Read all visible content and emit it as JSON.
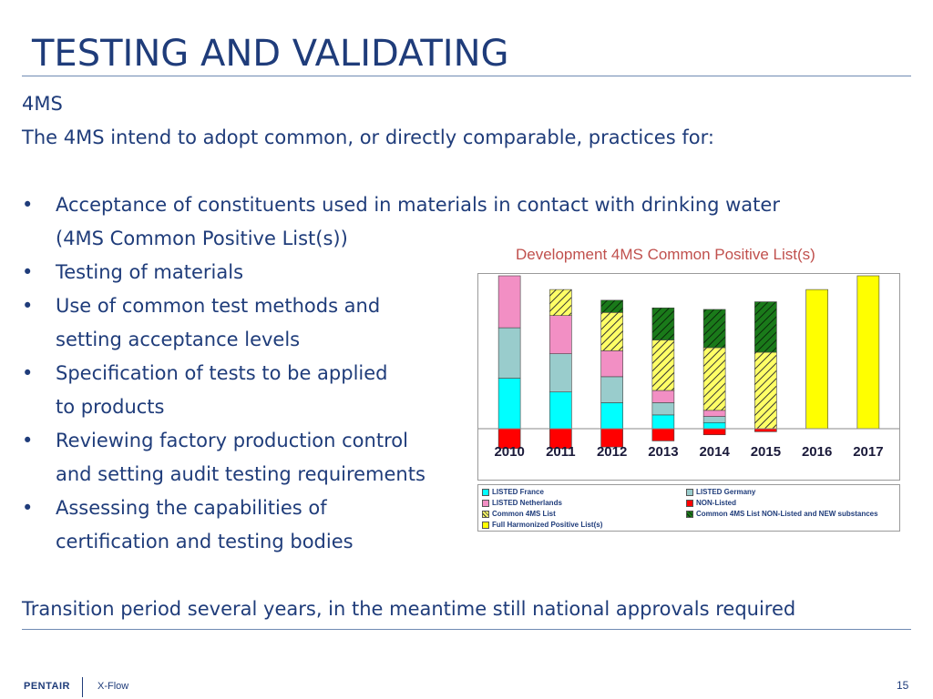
{
  "slide": {
    "title": "TESTING AND VALIDATING",
    "subtitle": "4MS",
    "intro": "The 4MS intend to adopt common, or directly comparable, practices for:",
    "bullet_marker": "•",
    "bullets": [
      {
        "line1": "Acceptance of constituents used in materials in contact with drinking water",
        "line2": "(4MS Common Positive List(s))"
      },
      {
        "line1": "Testing of materials",
        "line2": ""
      },
      {
        "line1": "Use of common test methods and",
        "line2": "setting acceptance levels"
      },
      {
        "line1": "Specification of tests to be applied",
        "line2": "to products"
      },
      {
        "line1": "Reviewing factory production control",
        "line2": "and setting audit testing requirements"
      },
      {
        "line1": "Assessing the capabilities of",
        "line2": "certification and testing bodies"
      }
    ],
    "conclusion": "Transition period several years, in the meantime still national approvals required"
  },
  "footer": {
    "logo": "PENTAIR",
    "brand": "X-Flow",
    "page_number": "15"
  },
  "chart_data": {
    "type": "bar",
    "stacked": true,
    "title": "Development 4MS Common Positive List(s)",
    "categories": [
      "2010",
      "2011",
      "2012",
      "2013",
      "2014",
      "2015",
      "2016",
      "2017"
    ],
    "ylim": [
      -13,
      100
    ],
    "grid": false,
    "legend_position": "bottom",
    "series": [
      {
        "name": "NON-Listed",
        "color": "#ff0000",
        "pattern": "solid",
        "values": [
          -13,
          -13,
          -12,
          -8,
          -4,
          -2,
          0,
          0
        ]
      },
      {
        "name": "LISTED France",
        "color": "#00ffff",
        "pattern": "solid",
        "values": [
          33,
          24,
          17,
          9,
          4,
          0,
          0,
          0
        ]
      },
      {
        "name": "LISTED Germany",
        "color": "#99cccc",
        "pattern": "solid",
        "values": [
          33,
          25,
          17,
          8,
          4,
          0,
          0,
          0
        ]
      },
      {
        "name": "LISTED Netherlands",
        "color": "#f28fc4",
        "pattern": "solid",
        "values": [
          34,
          25,
          17,
          8,
          4,
          0,
          0,
          0
        ]
      },
      {
        "name": "Common 4MS List",
        "color": "#ffff66",
        "pattern": "hatch",
        "values": [
          0,
          17,
          25,
          33,
          41,
          50,
          0,
          0
        ]
      },
      {
        "name": "Common 4MS List NON-Listed and NEW substances",
        "color": "#1a7a1a",
        "pattern": "hatch",
        "values": [
          0,
          0,
          8,
          21,
          25,
          33,
          0,
          0
        ]
      },
      {
        "name": "Full Harmonized Positive List(s)",
        "color": "#ffff00",
        "pattern": "solid",
        "values": [
          0,
          0,
          0,
          0,
          0,
          0,
          91,
          100
        ]
      }
    ],
    "legend": [
      {
        "label": "LISTED France",
        "color": "#00ffff"
      },
      {
        "label": "LISTED Germany",
        "color": "#99cccc"
      },
      {
        "label": "LISTED Netherlands",
        "color": "#f28fc4"
      },
      {
        "label": "NON-Listed",
        "color": "#ff0000"
      },
      {
        "label": "Common 4MS List",
        "color": "#ffff66"
      },
      {
        "label": "Common 4MS List NON-Listed and NEW substances",
        "color": "#1a7a1a"
      },
      {
        "label": "Full Harmonized Positive List(s)",
        "color": "#ffff00"
      }
    ]
  }
}
